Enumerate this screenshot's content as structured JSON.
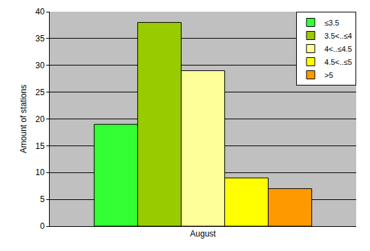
{
  "chart_data": {
    "type": "bar",
    "y_label": "Amount of stations",
    "categories": [
      "August"
    ],
    "series": [
      {
        "name": "≤3.5",
        "color": "#33ff33",
        "values": [
          19
        ]
      },
      {
        "name": "3.5<..≤4",
        "color": "#99cc00",
        "values": [
          38
        ]
      },
      {
        "name": "4<..≤4.5",
        "color": "#ffff99",
        "values": [
          29
        ]
      },
      {
        "name": "4.5<..≤5",
        "color": "#ffff00",
        "values": [
          9
        ]
      },
      {
        "name": ">5",
        "color": "#ff9900",
        "values": [
          7
        ]
      }
    ],
    "ylim": [
      0,
      40
    ],
    "yticks": [
      0,
      5,
      10,
      15,
      20,
      25,
      30,
      35,
      40
    ],
    "grid": true,
    "legend": "top-right"
  }
}
